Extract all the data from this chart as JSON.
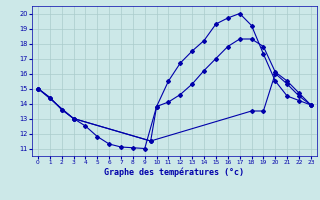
{
  "bg_color": "#cce8e8",
  "grid_color": "#aacccc",
  "line_color": "#0000aa",
  "xlim": [
    -0.5,
    23.5
  ],
  "ylim": [
    10.5,
    20.5
  ],
  "xticks": [
    0,
    1,
    2,
    3,
    4,
    5,
    6,
    7,
    8,
    9,
    10,
    11,
    12,
    13,
    14,
    15,
    16,
    17,
    18,
    19,
    20,
    21,
    22,
    23
  ],
  "yticks": [
    11,
    12,
    13,
    14,
    15,
    16,
    17,
    18,
    19,
    20
  ],
  "xlabel": "Graphe des températures (°c)",
  "series1_x": [
    0,
    1,
    2,
    3,
    4,
    5,
    6,
    7,
    8,
    9,
    10,
    11,
    12,
    13,
    14,
    15,
    16,
    17,
    18,
    19,
    20,
    21,
    22,
    23
  ],
  "series1_y": [
    15.0,
    14.4,
    13.6,
    13.0,
    12.5,
    11.8,
    11.3,
    11.1,
    11.05,
    11.0,
    13.8,
    14.1,
    14.6,
    15.3,
    16.2,
    17.0,
    17.8,
    18.3,
    18.3,
    17.8,
    16.1,
    15.5,
    14.7,
    13.9
  ],
  "series2_x": [
    0,
    1,
    2,
    3,
    9.5,
    10,
    11,
    12,
    13,
    14,
    15,
    16,
    17,
    18,
    19,
    20,
    21,
    22,
    23
  ],
  "series2_y": [
    15.0,
    14.4,
    13.6,
    13.0,
    11.5,
    13.8,
    15.5,
    16.7,
    17.5,
    18.2,
    19.3,
    19.7,
    20.0,
    19.2,
    17.3,
    15.5,
    14.5,
    14.2,
    13.9
  ],
  "series3_x": [
    0,
    3,
    9.5,
    18,
    19,
    20,
    21,
    22,
    23
  ],
  "series3_y": [
    15.0,
    13.0,
    11.5,
    13.5,
    13.5,
    16.0,
    15.3,
    14.5,
    13.9
  ]
}
